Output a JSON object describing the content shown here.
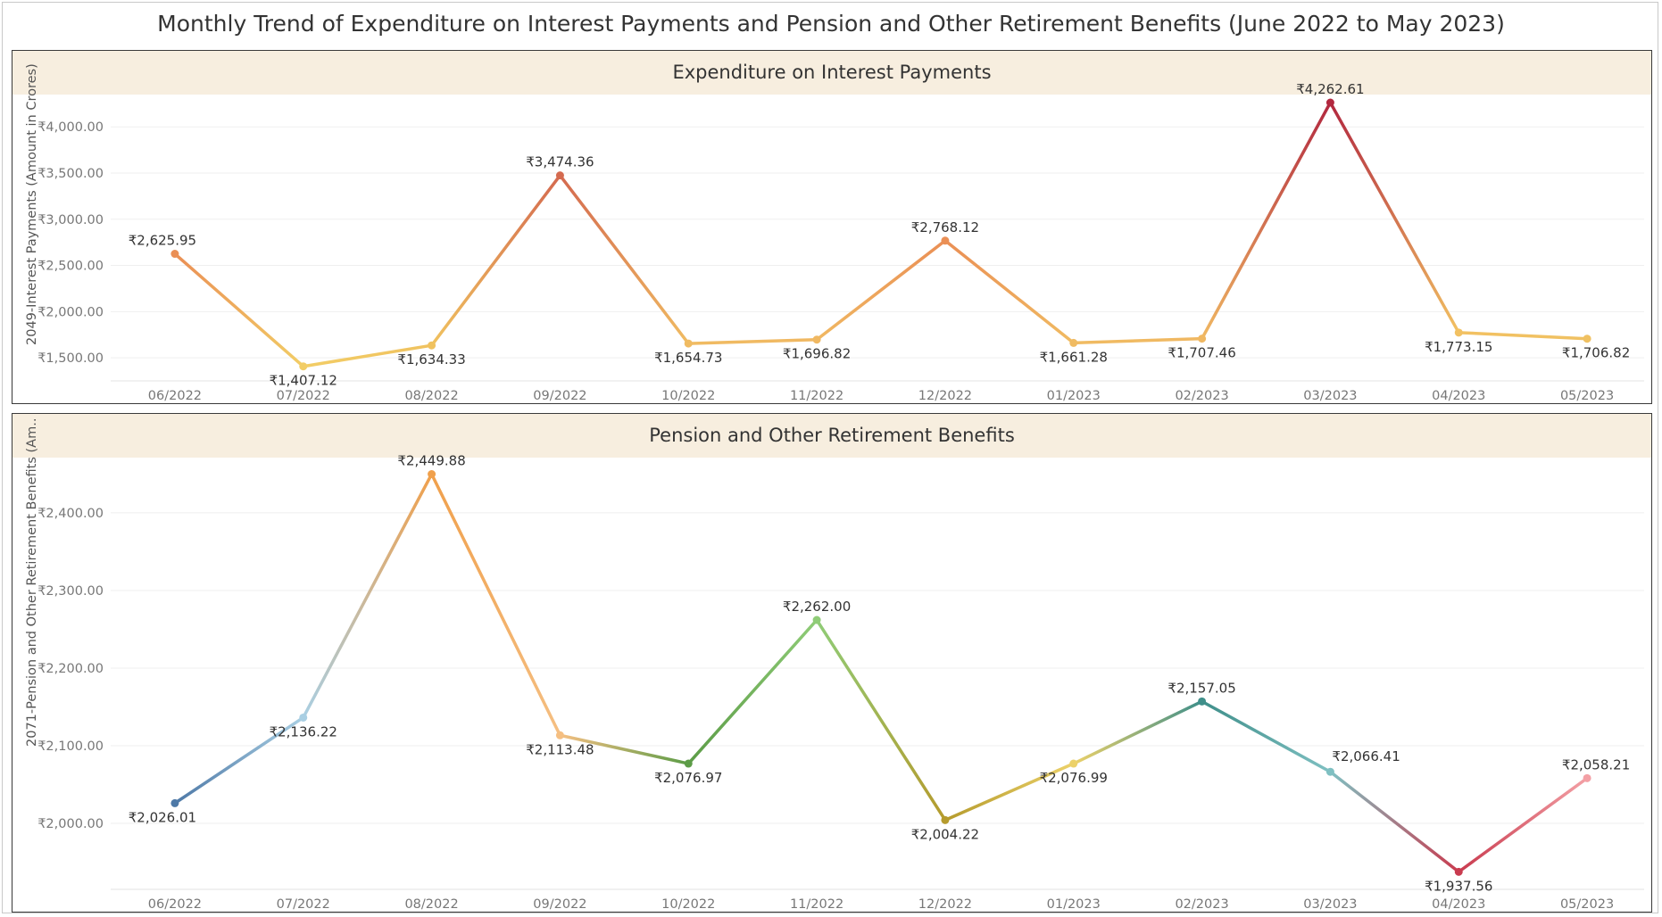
{
  "title": "Monthly Trend of Expenditure on Interest Payments and Pension and Other Retirement Benefits (June 2022 to May 2023)",
  "chart_data": [
    {
      "type": "line",
      "title": "Expenditure on Interest Payments",
      "ylabel": "2049-Interest Payments (Amount in Crores)",
      "categories": [
        "06/2022",
        "07/2022",
        "08/2022",
        "09/2022",
        "10/2022",
        "11/2022",
        "12/2022",
        "01/2023",
        "02/2023",
        "03/2023",
        "04/2023",
        "05/2023"
      ],
      "values": [
        2625.95,
        1407.12,
        1634.33,
        3474.36,
        1654.73,
        1696.82,
        2768.12,
        1661.28,
        1707.46,
        4262.61,
        1773.15,
        1706.82
      ],
      "data_labels": [
        "₹2,625.95",
        "₹1,407.12",
        "₹1,634.33",
        "₹3,474.36",
        "₹1,654.73",
        "₹1,696.82",
        "₹2,768.12",
        "₹1,661.28",
        "₹1,707.46",
        "₹4,262.61",
        "₹1,773.15",
        "₹1,706.82"
      ],
      "ylim": [
        1250,
        4340
      ],
      "yticks": [
        1500,
        2000,
        2500,
        3000,
        3500,
        4000
      ],
      "ytick_labels": [
        "₹1,500.00",
        "₹2,000.00",
        "₹2,500.00",
        "₹3,000.00",
        "₹3,500.00",
        "₹4,000.00"
      ],
      "point_colors": [
        "#ea8f55",
        "#f2cd66",
        "#f0c25f",
        "#d46a4f",
        "#f0bb62",
        "#f0b862",
        "#ea8f55",
        "#f0bb62",
        "#f0b862",
        "#b2283f",
        "#f2c162",
        "#f0c162"
      ],
      "grid": true
    },
    {
      "type": "line",
      "title": "Pension and Other Retirement Benefits",
      "ylabel": "2071-Pension and Other Retirement Benefits (Am..",
      "categories": [
        "06/2022",
        "07/2022",
        "08/2022",
        "09/2022",
        "10/2022",
        "11/2022",
        "12/2022",
        "01/2023",
        "02/2023",
        "03/2023",
        "04/2023",
        "05/2023"
      ],
      "values": [
        2026.01,
        2136.22,
        2449.88,
        2113.48,
        2076.97,
        2262.0,
        2004.22,
        2076.99,
        2157.05,
        2066.41,
        1937.56,
        2058.21
      ],
      "data_labels": [
        "₹2,026.01",
        "₹2,136.22",
        "₹2,449.88",
        "₹2,113.48",
        "₹2,076.97",
        "₹2,262.00",
        "₹2,004.22",
        "₹2,076.99",
        "₹2,157.05",
        "₹2,066.41",
        "₹1,937.56",
        "₹2,058.21"
      ],
      "ylim": [
        1915,
        2470
      ],
      "yticks": [
        2000,
        2100,
        2200,
        2300,
        2400
      ],
      "ytick_labels": [
        "₹2,000.00",
        "₹2,100.00",
        "₹2,200.00",
        "₹2,300.00",
        "₹2,400.00"
      ],
      "point_colors": [
        "#4e79a7",
        "#a9cfe3",
        "#f0a04c",
        "#f5bf82",
        "#5c9c47",
        "#8fcc77",
        "#b59b2d",
        "#ecd169",
        "#3f8f8a",
        "#7fc0c2",
        "#c93b4f",
        "#f3a0a5"
      ],
      "grid": true
    }
  ]
}
